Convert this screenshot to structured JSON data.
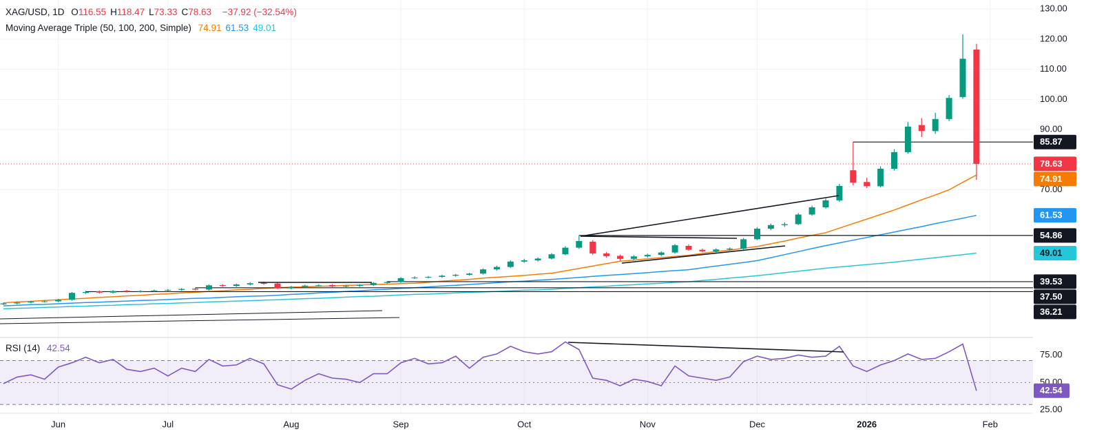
{
  "chart_data": {
    "type": "candlestick",
    "header": {
      "symbol": "XAG/USD, 1D",
      "keys": [
        "O",
        "H",
        "L",
        "C"
      ],
      "change": "−37.92 (−32.54%)"
    },
    "categories": [
      null,
      null,
      null,
      null,
      "Jun",
      null,
      null,
      null,
      null,
      null,
      null,
      null,
      "Jul",
      null,
      null,
      null,
      null,
      null,
      null,
      null,
      null,
      "Aug",
      null,
      null,
      null,
      null,
      null,
      null,
      null,
      "Sep",
      null,
      null,
      null,
      null,
      null,
      null,
      null,
      null,
      "Oct",
      null,
      null,
      null,
      null,
      null,
      null,
      null,
      null,
      "Nov",
      null,
      null,
      null,
      null,
      null,
      null,
      null,
      "Dec",
      null,
      null,
      null,
      null,
      null,
      null,
      null,
      "2026",
      null,
      null,
      null,
      null,
      null,
      null,
      null,
      null,
      "Feb"
    ],
    "open": [
      32.0,
      32.3,
      32.6,
      32.9,
      33.0,
      33.5,
      35.8,
      36.3,
      35.9,
      36.5,
      36.2,
      36.4,
      36.6,
      36.8,
      37.2,
      36.9,
      38.4,
      38.1,
      38.6,
      39.1,
      38.9,
      37.3,
      37.8,
      38.2,
      38.4,
      38.0,
      38.1,
      38.4,
      39.1,
      39.4,
      40.7,
      40.9,
      41.1,
      41.5,
      41.8,
      42.2,
      43.6,
      44.4,
      46.2,
      46.6,
      47.2,
      48.6,
      50.8,
      52.8,
      48.9,
      48.1,
      47.1,
      47.9,
      48.4,
      49.2,
      51.4,
      50.1,
      49.6,
      50.2,
      50.5,
      53.6,
      57.1,
      58.3,
      58.6,
      61.8,
      64.2,
      66.5,
      76.5,
      72.6,
      71.2,
      77.0,
      82.5,
      91.5,
      89.5,
      93.5,
      100.8,
      116.55,
      null
    ],
    "high": [
      32.6,
      32.9,
      33.2,
      33.3,
      33.8,
      36.1,
      36.5,
      36.6,
      36.7,
      36.8,
      36.7,
      36.9,
      37.1,
      37.4,
      37.5,
      38.6,
      38.7,
      38.9,
      39.3,
      39.5,
      39.2,
      38.1,
      38.5,
      38.6,
      38.7,
      38.4,
      38.7,
      39.4,
      39.7,
      41.0,
      41.3,
      41.4,
      41.8,
      42.1,
      42.5,
      43.9,
      44.8,
      46.6,
      47.1,
      47.6,
      49.0,
      51.3,
      54.9,
      53.3,
      49.4,
      48.5,
      48.3,
      48.8,
      49.6,
      52.0,
      51.9,
      50.5,
      50.6,
      50.9,
      54.0,
      57.6,
      58.8,
      59.2,
      62.3,
      64.8,
      67.1,
      72.0,
      85.87,
      74.0,
      77.8,
      83.5,
      92.5,
      93.8,
      95.6,
      101.5,
      121.6,
      118.47,
      null
    ],
    "low": [
      31.8,
      32.0,
      32.3,
      32.6,
      32.7,
      33.2,
      35.5,
      35.6,
      35.6,
      35.9,
      35.9,
      36.1,
      36.3,
      36.5,
      36.6,
      36.6,
      37.8,
      37.8,
      38.3,
      38.5,
      37.0,
      37.0,
      37.5,
      37.9,
      37.7,
      37.7,
      37.8,
      38.1,
      38.8,
      39.1,
      40.4,
      40.6,
      40.8,
      41.2,
      41.5,
      41.9,
      43.2,
      44.1,
      45.8,
      46.2,
      46.9,
      48.3,
      50.4,
      48.4,
      47.5,
      46.5,
      46.7,
      47.5,
      48.0,
      48.8,
      49.8,
      49.3,
      49.2,
      49.8,
      50.2,
      53.3,
      56.6,
      57.7,
      58.3,
      61.4,
      63.8,
      66.0,
      71.5,
      70.6,
      70.8,
      76.4,
      82.0,
      87.5,
      88.6,
      92.8,
      100.2,
      73.33,
      null
    ],
    "close": [
      32.3,
      32.6,
      32.9,
      33.0,
      33.5,
      35.8,
      36.1,
      35.9,
      36.4,
      36.2,
      36.4,
      36.6,
      36.8,
      37.1,
      36.9,
      38.3,
      38.1,
      38.6,
      39.0,
      38.8,
      37.3,
      37.8,
      38.2,
      38.3,
      38.0,
      38.1,
      38.4,
      39.1,
      39.4,
      40.7,
      40.9,
      41.1,
      41.5,
      41.8,
      42.2,
      43.6,
      44.4,
      46.2,
      46.6,
      47.2,
      48.6,
      50.8,
      53.0,
      48.9,
      48.0,
      47.1,
      47.9,
      48.4,
      49.2,
      51.6,
      50.1,
      49.6,
      50.2,
      50.5,
      53.6,
      57.1,
      58.3,
      58.6,
      61.8,
      64.2,
      66.5,
      71.3,
      72.4,
      71.2,
      77.0,
      82.5,
      91.0,
      89.5,
      93.5,
      100.5,
      113.5,
      78.63,
      null
    ],
    "up_color": "#089981",
    "down_color": "#f23645",
    "moving_averages": {
      "label": "Moving Average Triple (50, 100, 200, Simple)",
      "lines": [
        {
          "color": "#f57c00",
          "values": [
            32.5,
            32.8,
            33.0,
            33.3,
            33.5,
            33.8,
            34.0,
            34.3,
            34.5,
            34.8,
            35.0,
            35.3,
            35.5,
            35.8,
            36.0,
            36.3,
            36.5,
            36.8,
            37.0,
            37.3,
            37.5,
            37.7,
            37.8,
            38.0,
            38.1,
            38.3,
            38.4,
            38.6,
            38.7,
            38.9,
            39.0,
            39.3,
            39.7,
            40.0,
            40.3,
            40.7,
            41.0,
            41.3,
            41.6,
            42.0,
            42.3,
            43.1,
            43.9,
            44.7,
            45.5,
            46.3,
            46.7,
            47.1,
            47.5,
            47.9,
            48.3,
            48.9,
            49.5,
            50.0,
            50.6,
            51.2,
            52.1,
            53.0,
            54.0,
            54.9,
            55.8,
            57.3,
            58.8,
            60.3,
            61.8,
            63.3,
            65.0,
            66.7,
            68.3,
            70.0,
            72.5,
            74.91,
            null
          ]
        },
        {
          "color": "#2196f3",
          "values": [
            31.5,
            31.7,
            31.9,
            32.0,
            32.2,
            32.4,
            32.6,
            32.7,
            32.9,
            33.1,
            33.3,
            33.4,
            33.6,
            33.8,
            34.0,
            34.1,
            34.3,
            34.5,
            34.7,
            34.8,
            35.0,
            35.3,
            35.5,
            35.8,
            36.0,
            36.3,
            36.5,
            36.8,
            37.0,
            37.3,
            37.5,
            37.8,
            38.1,
            38.3,
            38.6,
            38.9,
            39.2,
            39.5,
            39.7,
            40.0,
            40.3,
            40.6,
            40.9,
            41.3,
            41.6,
            41.9,
            42.2,
            42.5,
            42.9,
            43.2,
            43.5,
            44.1,
            44.7,
            45.3,
            45.9,
            46.5,
            47.5,
            48.5,
            49.5,
            50.5,
            51.5,
            52.4,
            53.3,
            54.2,
            55.1,
            56.0,
            56.9,
            57.8,
            58.8,
            59.7,
            60.6,
            61.53,
            null
          ]
        },
        {
          "color": "#26c6da",
          "values": [
            30.5,
            30.7,
            30.8,
            31.0,
            31.1,
            31.3,
            31.4,
            31.6,
            31.7,
            31.9,
            32.0,
            32.2,
            32.3,
            32.5,
            32.6,
            32.8,
            32.9,
            33.1,
            33.2,
            33.4,
            33.5,
            33.7,
            33.9,
            34.0,
            34.2,
            34.4,
            34.6,
            34.7,
            34.9,
            35.1,
            35.3,
            35.4,
            35.6,
            35.8,
            36.0,
            36.1,
            36.3,
            36.5,
            36.7,
            36.8,
            37.0,
            37.3,
            37.5,
            37.8,
            38.0,
            38.3,
            38.5,
            38.8,
            39.0,
            39.3,
            39.5,
            39.9,
            40.3,
            40.7,
            41.1,
            41.5,
            42.0,
            42.5,
            43.0,
            43.5,
            44.0,
            44.4,
            44.8,
            45.2,
            45.6,
            46.0,
            46.5,
            47.0,
            47.5,
            48.0,
            48.5,
            49.01,
            null
          ]
        }
      ]
    },
    "ylim": [
      21,
      133
    ],
    "yticks": [
      {
        "value": 130,
        "label": "130.00"
      },
      {
        "value": 120,
        "label": "120.00"
      },
      {
        "value": 110,
        "label": "110.00"
      },
      {
        "value": 100,
        "label": "100.00"
      },
      {
        "value": 90,
        "label": "90.00"
      },
      {
        "value": 70,
        "label": "70.00"
      }
    ],
    "levels": [
      85.87,
      54.86,
      39.53,
      {
        "value": 37.5,
        "label": "37.50"
      },
      36.21
    ],
    "level_color": "#131722",
    "grid": true,
    "rsi": {
      "label": "RSI (14)",
      "color": "#7e57c2",
      "values": [
        49,
        55,
        57,
        53,
        64,
        68,
        73,
        68,
        71,
        62,
        60,
        63,
        56,
        63,
        60,
        71,
        65,
        66,
        72,
        67,
        48,
        44,
        52,
        58,
        54,
        53,
        50,
        58,
        58,
        68,
        72,
        67,
        68,
        74,
        63,
        73,
        76,
        83,
        78,
        76,
        78,
        87,
        80,
        54,
        52,
        47,
        53,
        51,
        47,
        65,
        56,
        54,
        52,
        55,
        69,
        74,
        71,
        72,
        75,
        73,
        74,
        83,
        65,
        60,
        66,
        70,
        76,
        71,
        72,
        78,
        85,
        42.54,
        null
      ],
      "ylim": [
        22,
        91
      ],
      "yticks": [
        {
          "value": 75,
          "label": "75.00"
        },
        {
          "value": 50,
          "label": "50.00"
        },
        {
          "value": 25,
          "label": "25.00"
        }
      ],
      "bands": [
        70,
        30
      ],
      "midline": 50
    }
  }
}
